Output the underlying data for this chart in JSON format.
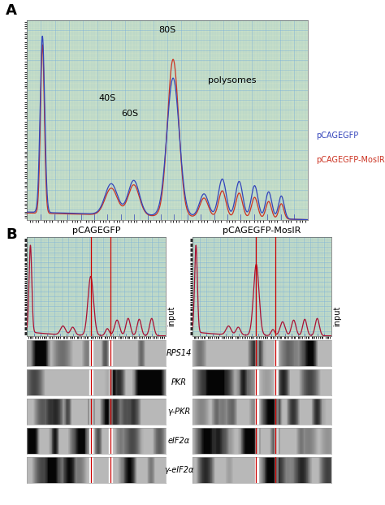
{
  "panel_A_label": "A",
  "panel_B_label": "B",
  "legend_blue": "pCAGEGFP",
  "legend_red": "pCAGEGFP-MosIR",
  "label_80S": "80S",
  "label_40S": "40S",
  "label_60S": "60S",
  "label_polysomes": "polysomes",
  "label_input": "input",
  "wb_labels": [
    "RPS14",
    "PKR",
    "γ-PKR",
    "eIF2α",
    "γ-eIF2α"
  ],
  "left_title": "pCAGEGFP",
  "right_title": "pCAGEGFP-MosIR",
  "bg_green": "#c8dfc8",
  "grid_blue": "#7ab0d8",
  "line_color_blue": "#3344bb",
  "line_color_red": "#cc3322",
  "line_color_crimson": "#aa1133",
  "wb_bg": "#c0c0c0",
  "wb_dark": "#303030",
  "red_line": "#cc0000"
}
